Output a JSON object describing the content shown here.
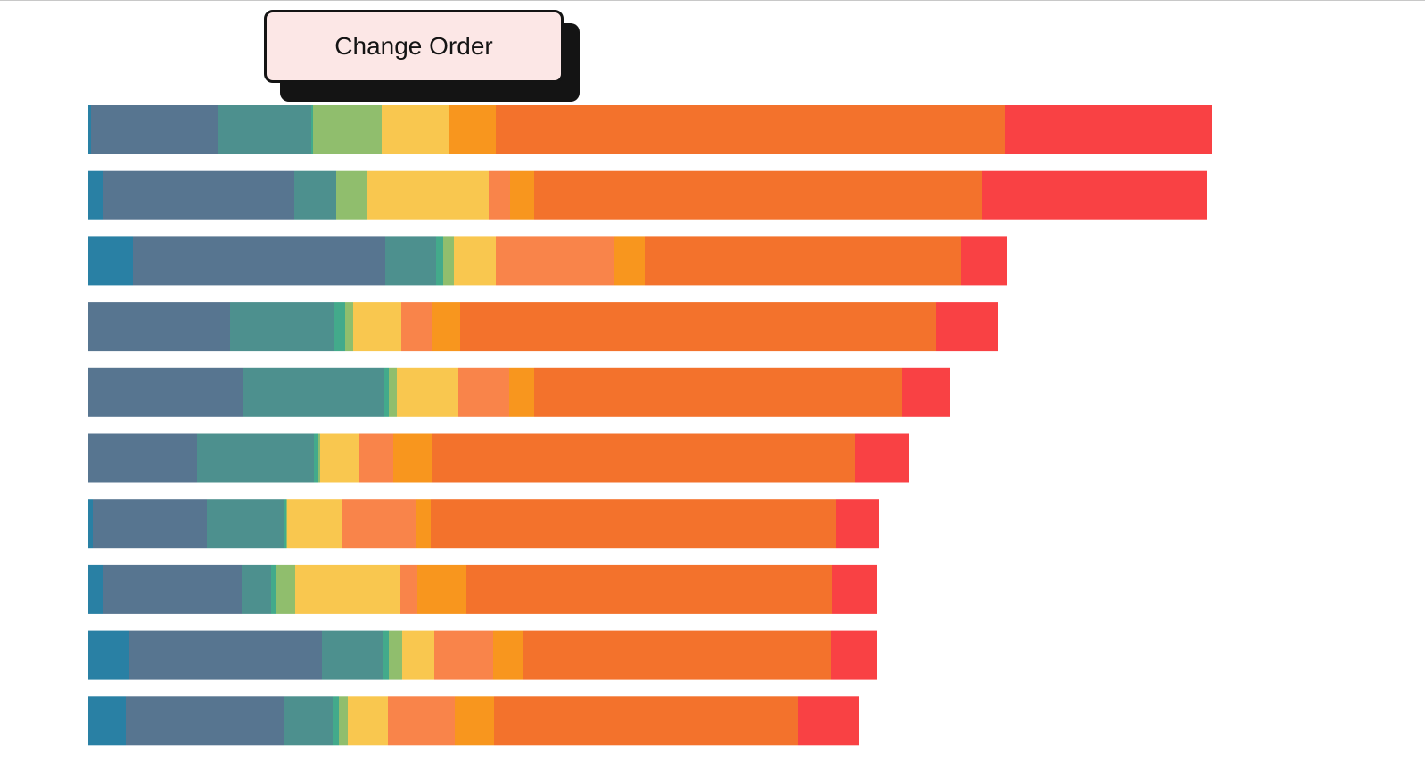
{
  "controls": {
    "change_order_label": "Change Order"
  },
  "chart_data": {
    "type": "bar",
    "orientation": "horizontal",
    "stacked": true,
    "title": "",
    "xlabel": "",
    "ylabel": "",
    "grid": false,
    "legend": "none",
    "axes_visible": false,
    "segment_colors": [
      "#2980a4",
      "#577590",
      "#4d908e",
      "#43aa8b",
      "#90be6d",
      "#f9c74f",
      "#f9844a",
      "#f8961e",
      "#f3722c",
      "#f94144"
    ],
    "series": [
      {
        "values": [
          0.3,
          14.2,
          10.5,
          0.2,
          7.7,
          7.5,
          0,
          5.3,
          57.1,
          23.2
        ]
      },
      {
        "values": [
          1.7,
          21.4,
          4.7,
          0,
          3.5,
          13.6,
          2.4,
          2.7,
          50.2,
          25.3
        ]
      },
      {
        "values": [
          5.0,
          28.3,
          5.7,
          0.8,
          1.2,
          4.7,
          13.2,
          3.5,
          35.5,
          5.1
        ]
      },
      {
        "values": [
          0,
          15.9,
          11.6,
          1.3,
          0.9,
          5.4,
          3.5,
          3.1,
          53.4,
          6.9
        ]
      },
      {
        "values": [
          0,
          17.3,
          15.9,
          0.5,
          0.9,
          6.9,
          5.7,
          2.8,
          41.2,
          5.4
        ]
      },
      {
        "values": [
          0,
          12.2,
          13.1,
          0.5,
          0.2,
          4.4,
          3.8,
          4.4,
          47.4,
          6.0
        ]
      },
      {
        "values": [
          0.5,
          12.8,
          8.6,
          0.3,
          0.1,
          6.2,
          8.3,
          1.6,
          45.5,
          4.8
        ]
      },
      {
        "values": [
          1.7,
          15.5,
          3.3,
          0.6,
          2.1,
          11.8,
          1.9,
          5.5,
          41.0,
          5.1
        ]
      },
      {
        "values": [
          4.6,
          21.6,
          6.9,
          0.6,
          1.5,
          3.6,
          6.6,
          3.4,
          34.5,
          5.1
        ]
      },
      {
        "values": [
          4.2,
          17.7,
          5.5,
          0.7,
          1.0,
          4.5,
          7.5,
          4.4,
          34.1,
          6.8
        ]
      }
    ]
  }
}
